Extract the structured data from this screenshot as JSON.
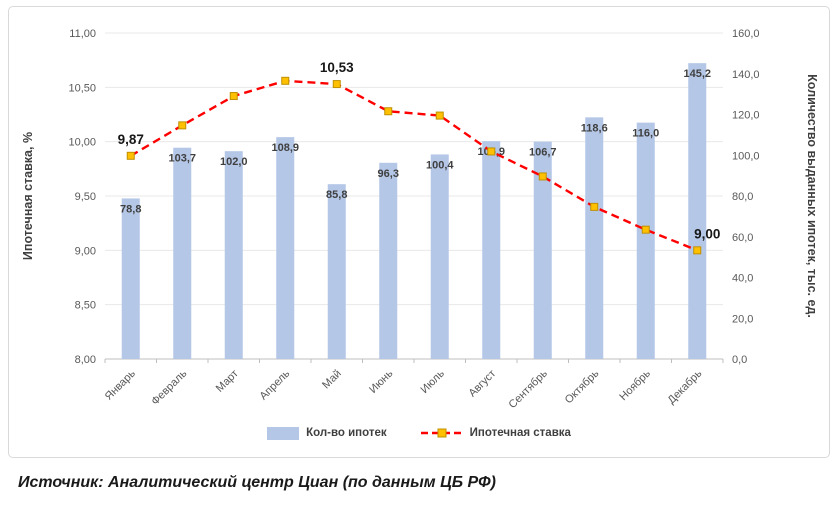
{
  "chart": {
    "source_caption": "Источник: Аналитический центр Циан (по данным ЦБ РФ)"
  },
  "chart_data": {
    "type": "combo",
    "categories": [
      "Январь",
      "Февраль",
      "Март",
      "Апрель",
      "Май",
      "Июнь",
      "Июль",
      "Август",
      "Сентябрь",
      "Октябрь",
      "Ноябрь",
      "Декабрь"
    ],
    "series": [
      {
        "name": "Кол-во ипотек",
        "type": "bar",
        "axis": "right",
        "color": "#b4c7e7",
        "values": [
          78.8,
          103.7,
          102.0,
          108.9,
          85.8,
          96.3,
          100.4,
          106.9,
          106.7,
          118.6,
          116.0,
          145.2
        ],
        "labels": [
          "78,8",
          "103,7",
          "102,0",
          "108,9",
          "85,8",
          "96,3",
          "100,4",
          "106,9",
          "106,7",
          "118,6",
          "116,0",
          "145,2"
        ]
      },
      {
        "name": "Ипотечная ставка",
        "type": "line",
        "axis": "left",
        "color": "#ff0000",
        "marker_color": "#ffc000",
        "marker_border": "#bf9000",
        "values": [
          9.87,
          10.15,
          10.42,
          10.56,
          10.53,
          10.28,
          10.24,
          9.91,
          9.68,
          9.4,
          9.19,
          9.0
        ],
        "labeled_points": {
          "0": "9,87",
          "4": "10,53",
          "11": "9,00"
        }
      }
    ],
    "left_axis": {
      "title": "Ипотечная ставка, %",
      "min": 8,
      "max": 11,
      "step": 0.5,
      "tick_labels": [
        "8,00",
        "8,50",
        "9,00",
        "9,50",
        "10,00",
        "10,50",
        "11,00"
      ]
    },
    "right_axis": {
      "title": "Количество выданных ипотек, тыс. ед.",
      "min": 0,
      "max": 160,
      "step": 20,
      "tick_labels": [
        "0,0",
        "20,0",
        "40,0",
        "60,0",
        "80,0",
        "100,0",
        "120,0",
        "140,0",
        "160,0"
      ]
    },
    "legend": [
      "Кол-во ипотек",
      "Ипотечная ставка"
    ],
    "grid": true,
    "legend_position": "bottom"
  }
}
